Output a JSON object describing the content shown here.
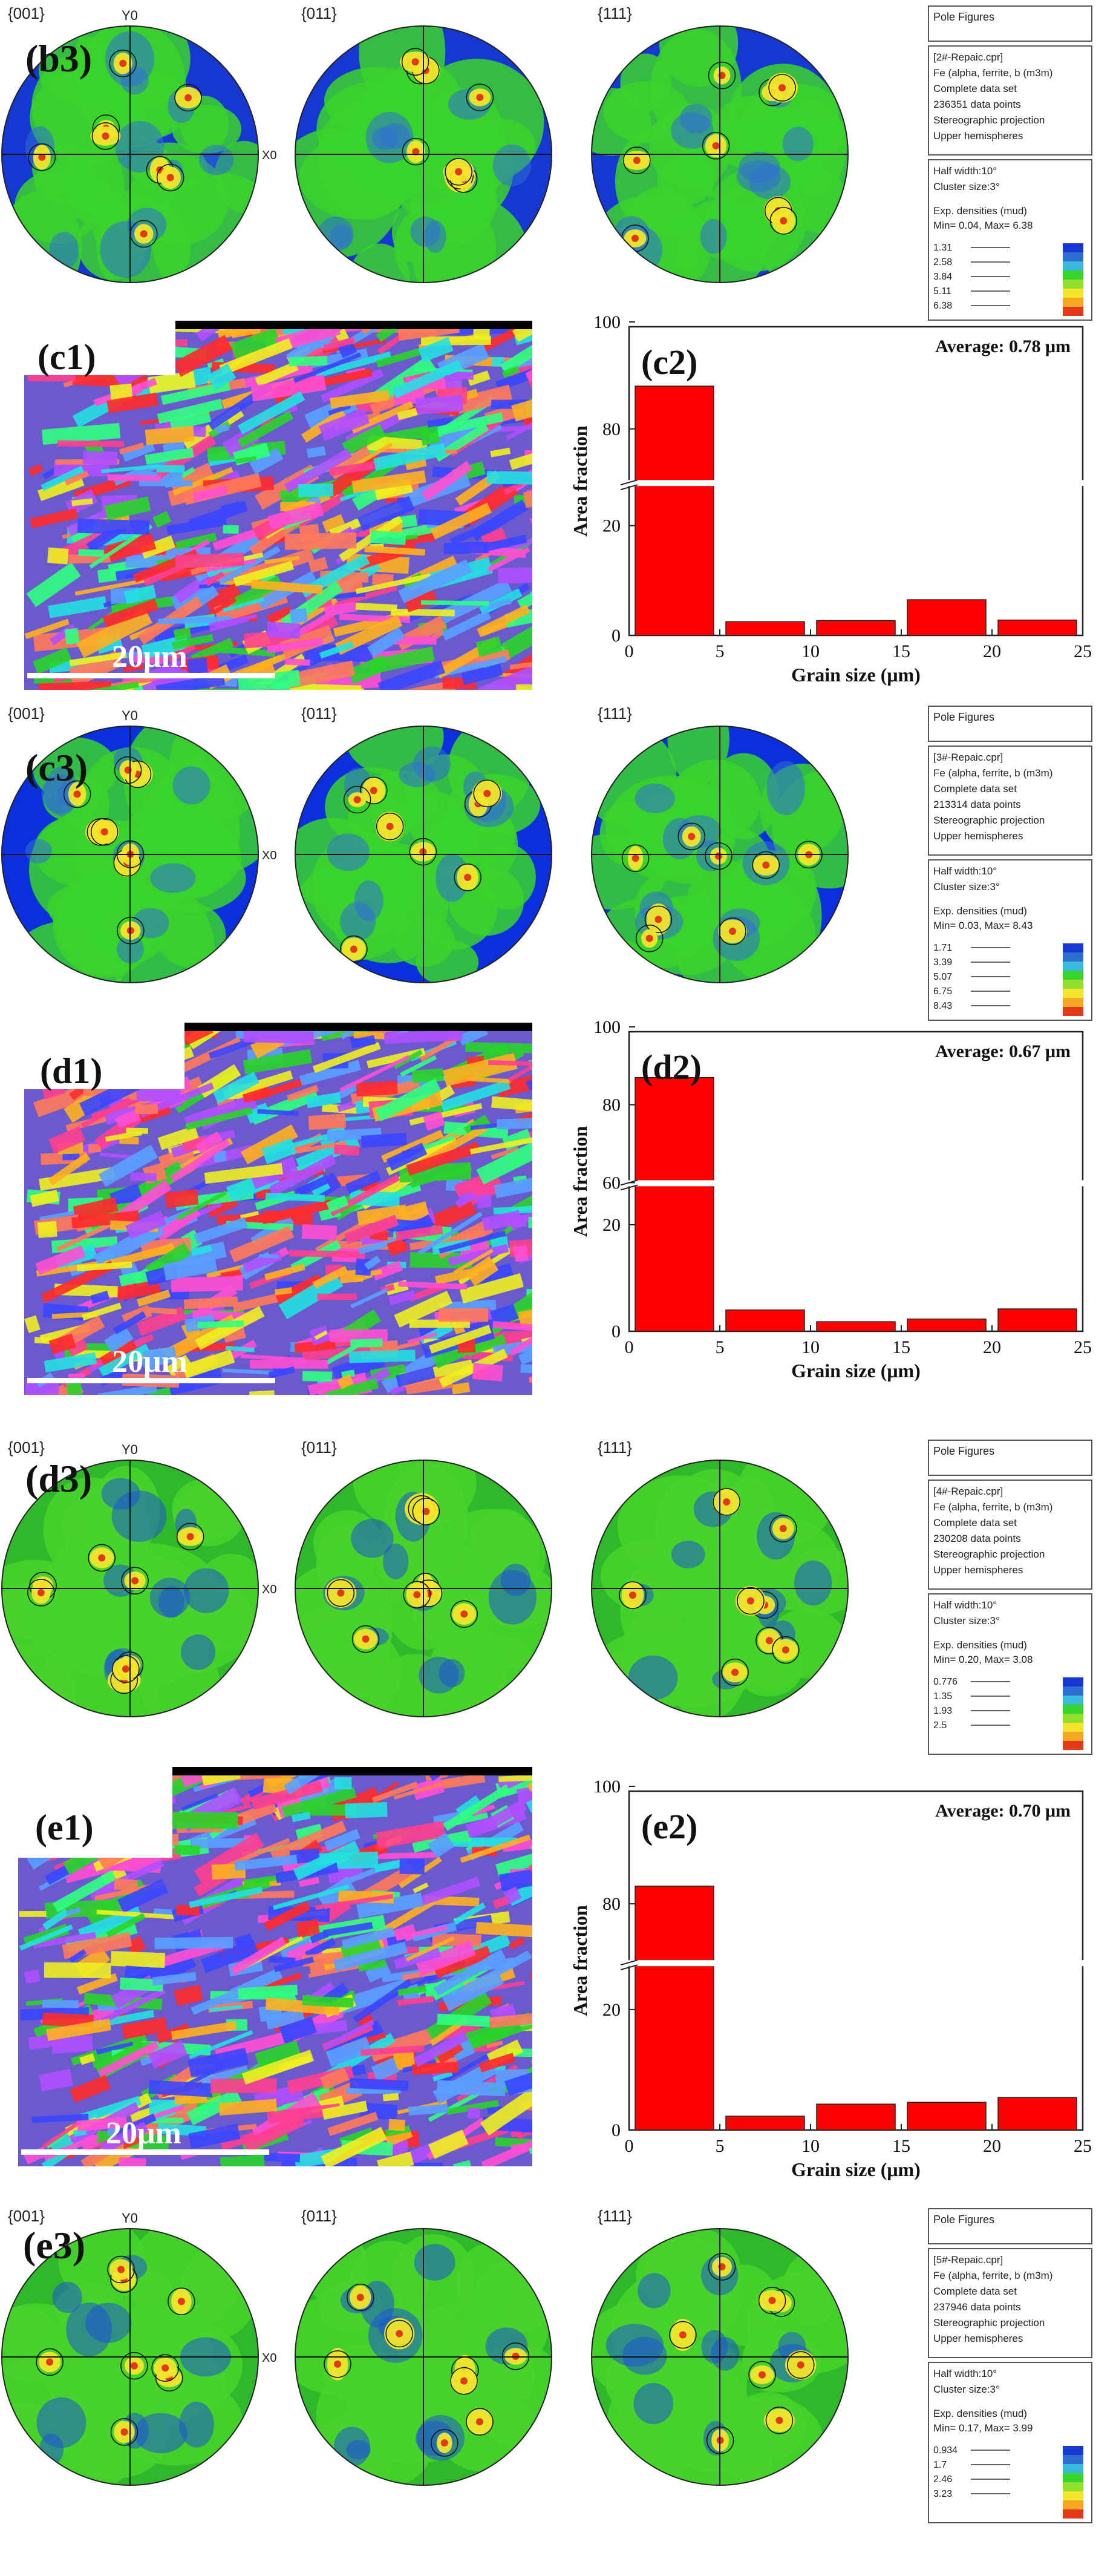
{
  "panels": [
    {
      "type": "pole_figures",
      "label": "(b3)",
      "poles": [
        "{001}",
        "{011}",
        "{111}"
      ],
      "axis_labels": {
        "y": "Y0",
        "x": "X0"
      },
      "info": {
        "header": "Pole Figures",
        "file": "[2#-Repaic.cpr]",
        "phase": "Fe (alpha, ferrite, b (m3m)",
        "dataset": "Complete data set",
        "points": "236351 data points",
        "projection": "Stereographic projection",
        "hemisphere": "Upper hemispheres",
        "half_width": "Half width:10°",
        "cluster": "Cluster size:3°",
        "density_title": "Exp. densities (mud)",
        "minmax": "Min= 0.04, Max= 6.38",
        "levels": [
          "1.31",
          "2.58",
          "3.84",
          "5.11",
          "6.38"
        ]
      },
      "colors": {
        "bg": "#1637d0",
        "low": "#2f6fd4",
        "mid": "#39d42c",
        "high": "#f2e52c",
        "peak": "#e23a16"
      }
    },
    {
      "type": "orientation_map_with_histogram",
      "map_label": "(c1)",
      "scale_bar": "20μm",
      "chart_label": "(c2)",
      "average": "Average: 0.78 μm",
      "chart_data": {
        "type": "bar",
        "x": [
          2.5,
          7.5,
          12.5,
          17.5,
          22.5
        ],
        "bin_width": 5,
        "values": [
          88,
          2.5,
          2.7,
          6.5,
          2.8
        ],
        "xlabel": "Grain size (μm)",
        "ylabel": "Area fraction",
        "xlim": [
          0,
          25
        ],
        "xticks": [
          "0",
          "5",
          "10",
          "15",
          "20",
          "25"
        ],
        "yticks": [
          "0",
          "20",
          "80",
          "100"
        ],
        "axis_break": [
          27,
          70
        ],
        "grid": false,
        "color": "#ff0000"
      }
    },
    {
      "type": "pole_figures",
      "label": "(c3)",
      "poles": [
        "{001}",
        "{011}",
        "{111}"
      ],
      "axis_labels": {
        "y": "Y0",
        "x": "X0"
      },
      "info": {
        "header": "Pole Figures",
        "file": "[3#-Repaic.cpr]",
        "phase": "Fe (alpha, ferrite, b (m3m)",
        "dataset": "Complete data set",
        "points": "213314 data points",
        "projection": "Stereographic projection",
        "hemisphere": "Upper hemispheres",
        "half_width": "Half width:10°",
        "cluster": "Cluster size:3°",
        "density_title": "Exp. densities (mud)",
        "minmax": "Min= 0.03, Max= 8.43",
        "levels": [
          "1.71",
          "3.39",
          "5.07",
          "6.75",
          "8.43"
        ]
      },
      "colors": {
        "bg": "#0a2fdc",
        "low": "#2f6fd4",
        "mid": "#39d42c",
        "high": "#f2e52c",
        "peak": "#e23a16"
      }
    },
    {
      "type": "orientation_map_with_histogram",
      "map_label": "(d1)",
      "scale_bar": "20μm",
      "chart_label": "(d2)",
      "average": "Average: 0.67 μm",
      "chart_data": {
        "type": "bar",
        "x": [
          2.5,
          7.5,
          12.5,
          17.5,
          22.5
        ],
        "bin_width": 5,
        "values": [
          87,
          4,
          1.8,
          2.3,
          4.2
        ],
        "xlabel": "Grain size (μm)",
        "ylabel": "Area fraction",
        "xlim": [
          0,
          25
        ],
        "xticks": [
          "0",
          "5",
          "10",
          "15",
          "20",
          "25"
        ],
        "yticks": [
          "0",
          "20",
          "60",
          "80",
          "100"
        ],
        "axis_break": [
          27,
          60
        ],
        "grid": false,
        "color": "#ff0000"
      }
    },
    {
      "type": "pole_figures",
      "label": "(d3)",
      "poles": [
        "{001}",
        "{011}",
        "{111}"
      ],
      "axis_labels": {
        "y": "Y0",
        "x": "X0"
      },
      "info": {
        "header": "Pole Figures",
        "file": "[4#-Repaic.cpr]",
        "phase": "Fe (alpha, ferrite, b (m3m)",
        "dataset": "Complete data set",
        "points": "230208 data points",
        "projection": "Stereographic projection",
        "hemisphere": "Upper hemispheres",
        "half_width": "Half width:10°",
        "cluster": "Cluster size:3°",
        "density_title": "Exp. densities (mud)",
        "minmax": "Min= 0.20, Max= 3.08",
        "levels": [
          "0.776",
          "1.35",
          "1.93",
          "2.5"
        ]
      },
      "colors": {
        "bg": "#2fb82a",
        "low": "#1c55d0",
        "mid": "#48d42a",
        "high": "#f2e52c",
        "peak": "#e23a16"
      }
    },
    {
      "type": "orientation_map_with_histogram",
      "map_label": "(e1)",
      "scale_bar": "20μm",
      "chart_label": "(e2)",
      "average": "Average: 0.70 μm",
      "chart_data": {
        "type": "bar",
        "x": [
          2.5,
          7.5,
          12.5,
          17.5,
          22.5
        ],
        "bin_width": 5,
        "values": [
          83,
          2.3,
          4.3,
          4.6,
          5.4
        ],
        "xlabel": "Grain size (μm)",
        "ylabel": "Area fraction",
        "xlim": [
          0,
          25
        ],
        "xticks": [
          "0",
          "5",
          "10",
          "15",
          "20",
          "25"
        ],
        "yticks": [
          "0",
          "20",
          "80",
          "100"
        ],
        "axis_break": [
          27,
          70
        ],
        "grid": false,
        "color": "#ff0000"
      }
    },
    {
      "type": "pole_figures",
      "label": "(e3)",
      "poles": [
        "{001}",
        "{011}",
        "{111}"
      ],
      "axis_labels": {
        "y": "Y0",
        "x": "X0"
      },
      "info": {
        "header": "Pole Figures",
        "file": "[5#-Repaic.cpr]",
        "phase": "Fe (alpha, ferrite, b (m3m)",
        "dataset": "Complete data set",
        "points": "237946 data points",
        "projection": "Stereographic projection",
        "hemisphere": "Upper hemispheres",
        "half_width": "Half width:10°",
        "cluster": "Cluster size:3°",
        "density_title": "Exp. densities (mud)",
        "minmax": "Min= 0.17, Max= 3.99",
        "levels": [
          "0.934",
          "1.7",
          "2.46",
          "3.23"
        ]
      },
      "colors": {
        "bg": "#2fb82a",
        "low": "#1c55d0",
        "mid": "#48d42a",
        "high": "#f2e52c",
        "peak": "#e23a16"
      }
    }
  ]
}
